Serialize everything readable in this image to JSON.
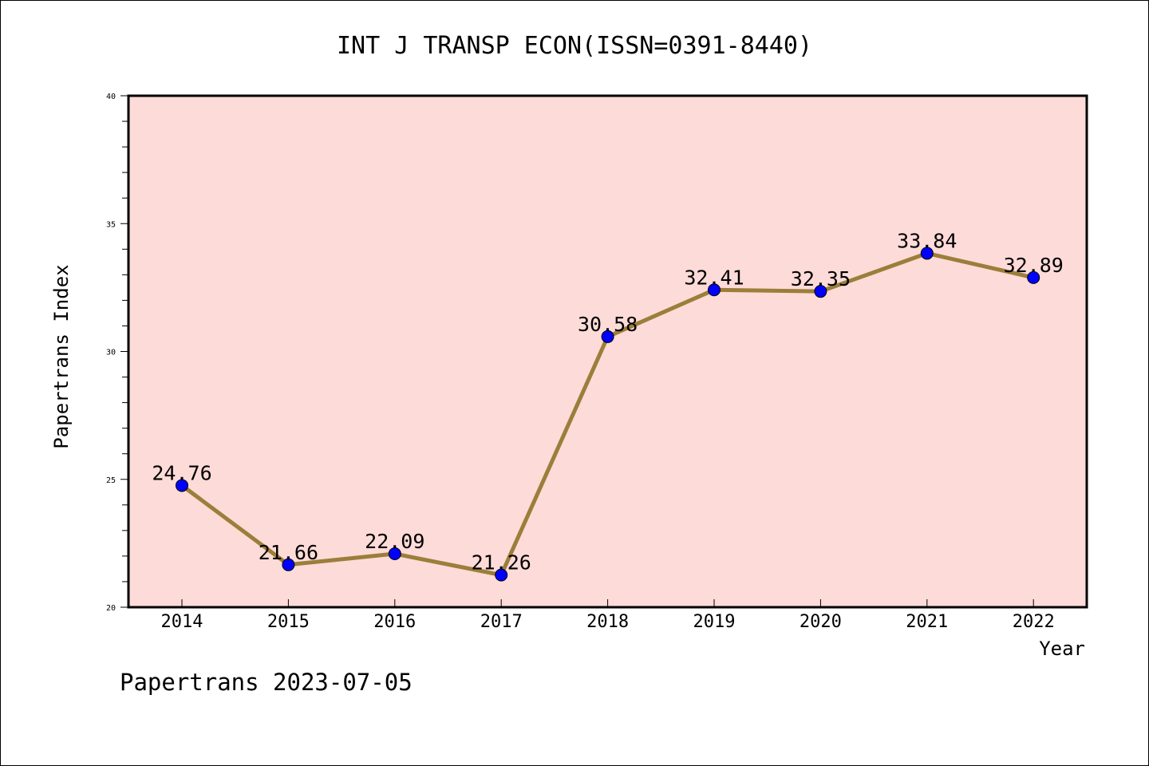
{
  "chart_data": {
    "type": "line",
    "title": "INT J TRANSP ECON(ISSN=0391-8440)",
    "xlabel": "Year",
    "ylabel": "Papertrans Index",
    "categories": [
      "2014",
      "2015",
      "2016",
      "2017",
      "2018",
      "2019",
      "2020",
      "2021",
      "2022"
    ],
    "series": [
      {
        "values": [
          24.76,
          21.66,
          22.09,
          21.26,
          30.58,
          32.41,
          32.35,
          33.84,
          32.89
        ],
        "labels": [
          "24.76",
          "21.66",
          "22.09",
          "21.26",
          "30.58",
          "32.41",
          "32.35",
          "33.84",
          "32.89"
        ]
      }
    ],
    "ylim": [
      20,
      40
    ],
    "yticks": [
      "20",
      "25",
      "30",
      "35",
      "40"
    ],
    "grid": false,
    "colors": {
      "plot_background": "#fddbd8",
      "line": "#9b7e3a",
      "marker": "#0000ff"
    }
  },
  "footer": {
    "text": "Papertrans 2023-07-05"
  }
}
